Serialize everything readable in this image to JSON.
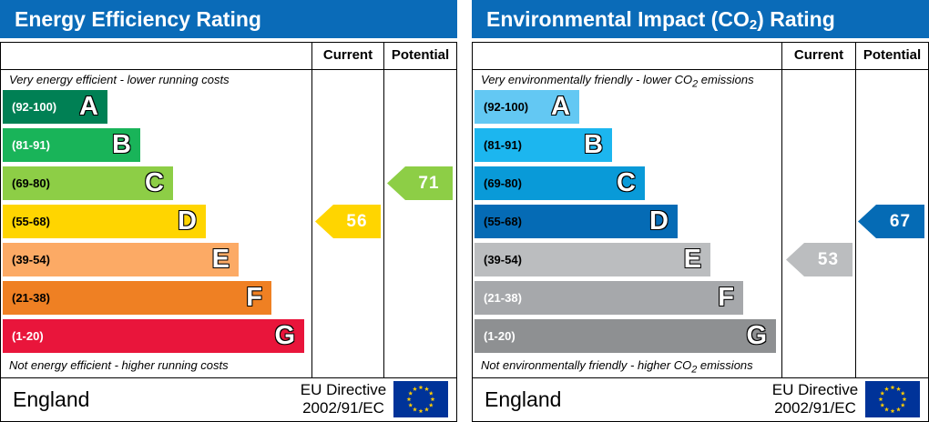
{
  "chart_data": [
    {
      "type": "bar",
      "title": "Energy Efficiency Rating",
      "column_headers": [
        "Current",
        "Potential"
      ],
      "top_note": "Very energy efficient - lower running costs",
      "bottom_note": "Not energy efficient - higher running costs",
      "bands": [
        {
          "letter": "A",
          "range": "(92-100)",
          "color": "#008054"
        },
        {
          "letter": "B",
          "range": "(81-91)",
          "color": "#19b459"
        },
        {
          "letter": "C",
          "range": "(69-80)",
          "color": "#8dce46"
        },
        {
          "letter": "D",
          "range": "(55-68)",
          "color": "#ffd500"
        },
        {
          "letter": "E",
          "range": "(39-54)",
          "color": "#fcaa65"
        },
        {
          "letter": "F",
          "range": "(21-38)",
          "color": "#ef8023"
        },
        {
          "letter": "G",
          "range": "(1-20)",
          "color": "#e9153b"
        }
      ],
      "current": {
        "value": "56",
        "band": "D",
        "color": "#ffd500"
      },
      "potential": {
        "value": "71",
        "band": "C",
        "color": "#8dce46"
      },
      "footer": {
        "country": "England",
        "directive_line1": "EU Directive",
        "directive_line2": "2002/91/EC"
      }
    },
    {
      "type": "bar",
      "title": "Environmental Impact (CO2) Rating",
      "column_headers": [
        "Current",
        "Potential"
      ],
      "top_note": "Very environmentally friendly - lower CO2 emissions",
      "bottom_note": "Not environmentally friendly - higher CO2 emissions",
      "bands": [
        {
          "letter": "A",
          "range": "(92-100)",
          "color": "#63c8f3"
        },
        {
          "letter": "B",
          "range": "(81-91)",
          "color": "#1cb6ef"
        },
        {
          "letter": "C",
          "range": "(69-80)",
          "color": "#099ad8"
        },
        {
          "letter": "D",
          "range": "(55-68)",
          "color": "#056bb5"
        },
        {
          "letter": "E",
          "range": "(39-54)",
          "color": "#bbbdbf"
        },
        {
          "letter": "F",
          "range": "(21-38)",
          "color": "#a6a8ab"
        },
        {
          "letter": "G",
          "range": "(1-20)",
          "color": "#8e9092"
        }
      ],
      "current": {
        "value": "53",
        "band": "E",
        "color": "#bbbdbf"
      },
      "potential": {
        "value": "67",
        "band": "D",
        "color": "#056bb5"
      },
      "footer": {
        "country": "England",
        "directive_line1": "EU Directive",
        "directive_line2": "2002/91/EC"
      }
    }
  ],
  "flag_icon": "eu-flag-icon",
  "text_colors": {
    "dark_band_text": "#000000",
    "light_band_text": "#ffffff"
  }
}
